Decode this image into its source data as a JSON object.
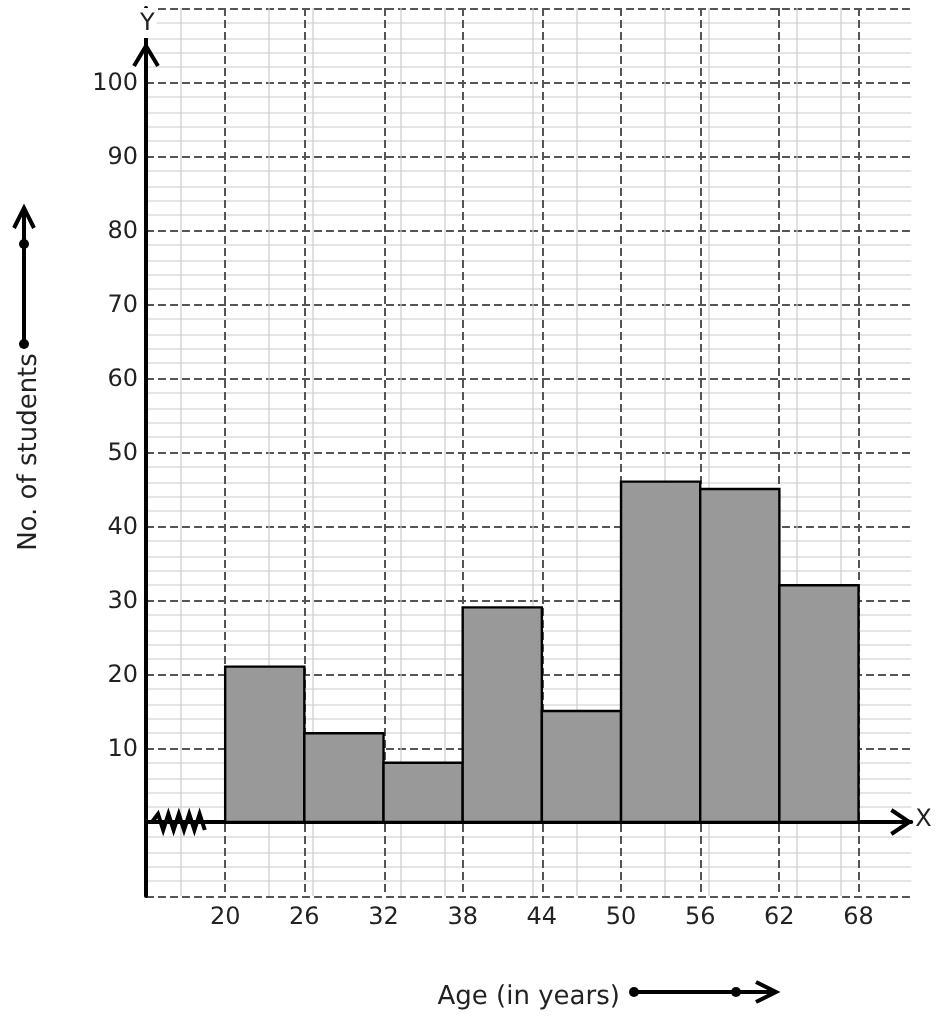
{
  "chart_data": {
    "type": "histogram",
    "xlabel": "Age (in years)",
    "ylabel": "No. of students",
    "annotations": [
      "X",
      "Y"
    ],
    "bins": [
      20,
      26,
      32,
      38,
      44,
      50,
      56,
      62,
      68
    ],
    "values": [
      21,
      12,
      8,
      29,
      15,
      46,
      45,
      32
    ],
    "color": "#999999",
    "xlim": [
      14,
      72
    ],
    "xticks": [
      20,
      26,
      32,
      38,
      44,
      50,
      56,
      62,
      68
    ],
    "ylim": [
      -10,
      110
    ],
    "yticks": [
      10,
      20,
      30,
      40,
      50,
      60,
      70,
      80,
      90,
      100
    ],
    "grid": true
  }
}
